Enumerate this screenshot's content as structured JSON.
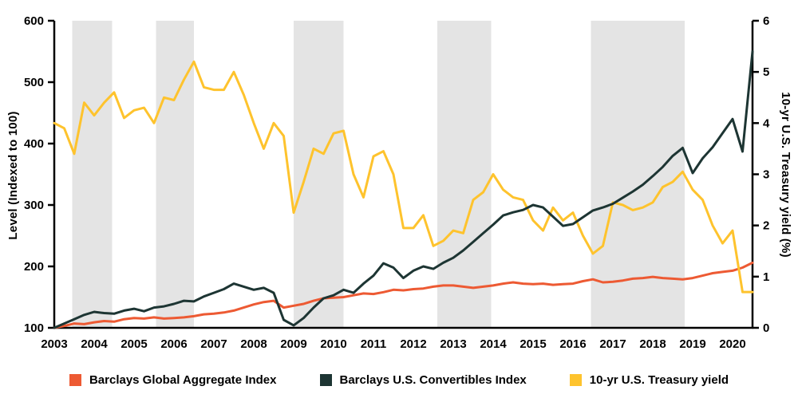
{
  "chart_data": {
    "type": "line",
    "title": "",
    "grid": false,
    "legend_position": "bottom",
    "background_color": "#ffffff",
    "shaded_band_color": "#e4e4e4",
    "axis_color": "#000000",
    "x": [
      2003,
      2003.25,
      2003.5,
      2003.75,
      2004,
      2004.25,
      2004.5,
      2004.75,
      2005,
      2005.25,
      2005.5,
      2005.75,
      2006,
      2006.25,
      2006.5,
      2006.75,
      2007,
      2007.25,
      2007.5,
      2007.75,
      2008,
      2008.25,
      2008.5,
      2008.75,
      2009,
      2009.25,
      2009.5,
      2009.75,
      2010,
      2010.25,
      2010.5,
      2010.75,
      2011,
      2011.25,
      2011.5,
      2011.75,
      2012,
      2012.25,
      2012.5,
      2012.75,
      2013,
      2013.25,
      2013.5,
      2013.75,
      2014,
      2014.25,
      2014.5,
      2014.75,
      2015,
      2015.25,
      2015.5,
      2015.75,
      2016,
      2016.25,
      2016.5,
      2016.75,
      2017,
      2017.25,
      2017.5,
      2017.75,
      2018,
      2018.25,
      2018.5,
      2018.75,
      2019,
      2019.25,
      2019.5,
      2019.75,
      2020,
      2020.25,
      2020.5
    ],
    "series": [
      {
        "name": "Barclays Global Aggregate Index",
        "axis": "left",
        "color": "#ed5a33",
        "values": [
          100,
          103,
          107,
          106,
          109,
          111,
          110,
          114,
          116,
          115,
          117,
          115,
          116,
          117,
          119,
          122,
          123,
          125,
          128,
          133,
          138,
          142,
          144,
          133,
          136,
          139,
          144,
          148,
          149,
          150,
          153,
          156,
          155,
          158,
          162,
          161,
          163,
          164,
          167,
          169,
          169,
          167,
          165,
          167,
          169,
          172,
          174,
          172,
          171,
          172,
          170,
          171,
          172,
          176,
          179,
          174,
          175,
          177,
          180,
          181,
          183,
          181,
          180,
          179,
          181,
          185,
          189,
          191,
          193,
          198,
          206
        ]
      },
      {
        "name": "Barclays U.S. Convertibles Index",
        "axis": "left",
        "color": "#1d3533",
        "values": [
          100,
          107,
          114,
          121,
          126,
          124,
          123,
          128,
          131,
          127,
          133,
          135,
          139,
          144,
          143,
          151,
          157,
          163,
          172,
          167,
          162,
          165,
          157,
          113,
          104,
          116,
          133,
          148,
          153,
          162,
          157,
          172,
          185,
          205,
          198,
          181,
          193,
          200,
          196,
          206,
          214,
          226,
          240,
          254,
          268,
          283,
          288,
          292,
          300,
          296,
          281,
          266,
          269,
          280,
          291,
          296,
          302,
          312,
          322,
          333,
          347,
          362,
          380,
          393,
          352,
          376,
          394,
          417,
          440,
          387,
          550
        ]
      },
      {
        "name": "10-yr U.S. Treasury yield",
        "axis": "right",
        "color": "#fec32d",
        "values": [
          4.0,
          3.9,
          3.4,
          4.4,
          4.15,
          4.4,
          4.6,
          4.1,
          4.25,
          4.3,
          4.0,
          4.5,
          4.45,
          4.85,
          5.2,
          4.7,
          4.65,
          4.65,
          5.0,
          4.55,
          4.0,
          3.5,
          4.0,
          3.75,
          2.25,
          2.85,
          3.5,
          3.4,
          3.8,
          3.85,
          3.0,
          2.55,
          3.35,
          3.45,
          3.0,
          1.95,
          1.95,
          2.2,
          1.6,
          1.7,
          1.9,
          1.85,
          2.5,
          2.65,
          3.0,
          2.7,
          2.55,
          2.5,
          2.1,
          1.9,
          2.35,
          2.1,
          2.25,
          1.8,
          1.45,
          1.6,
          2.45,
          2.4,
          2.3,
          2.35,
          2.45,
          2.75,
          2.85,
          3.05,
          2.7,
          2.5,
          2.0,
          1.65,
          1.9,
          0.7,
          0.7
        ]
      }
    ],
    "left_axis": {
      "label": "Level (Indexed to 100)",
      "min": 100,
      "max": 600,
      "ticks": [
        100,
        200,
        300,
        400,
        500,
        600
      ]
    },
    "right_axis": {
      "label": "10-yr U.S. Treasury yield (%)",
      "min": 0,
      "max": 6,
      "ticks": [
        0,
        1,
        2,
        3,
        4,
        5,
        6
      ]
    },
    "x_axis": {
      "ticks": [
        2003,
        2004,
        2005,
        2006,
        2007,
        2008,
        2009,
        2010,
        2011,
        2012,
        2013,
        2014,
        2015,
        2016,
        2017,
        2018,
        2019,
        2020
      ]
    },
    "shaded_regions": [
      [
        2003.45,
        2004.45
      ],
      [
        2005.55,
        2006.5
      ],
      [
        2009.0,
        2010.25
      ],
      [
        2012.6,
        2013.95
      ],
      [
        2016.45,
        2018.8
      ]
    ]
  }
}
